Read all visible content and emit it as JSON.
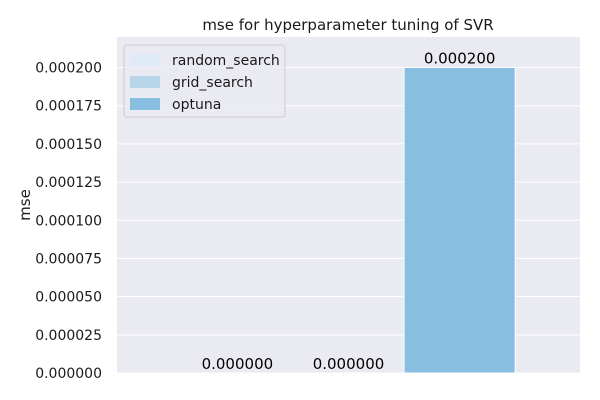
{
  "chart_data": {
    "type": "bar",
    "title": "mse for hyperparameter tuning of SVR",
    "xlabel": "",
    "ylabel": "mse",
    "categories": [
      ""
    ],
    "series": [
      {
        "name": "random_search",
        "values": [
          0.0
        ],
        "label": "0.000000"
      },
      {
        "name": "grid_search",
        "values": [
          0.0
        ],
        "label": "0.000000"
      },
      {
        "name": "optuna",
        "values": [
          0.0002
        ],
        "label": "0.000200"
      }
    ],
    "ylim": [
      0,
      0.00022
    ],
    "yticks": [
      0,
      2.5e-05,
      5e-05,
      7.5e-05,
      0.0001,
      0.000125,
      0.00015,
      0.000175,
      0.0002
    ],
    "ytick_labels": [
      "0.000000",
      "0.000025",
      "0.000050",
      "0.000075",
      "0.000100",
      "0.000125",
      "0.000150",
      "0.000175",
      "0.000200"
    ],
    "grid": true,
    "legend_position": "top-left",
    "colors": {
      "random_search": "#dfebf7",
      "grid_search": "#b8d5ea",
      "optuna": "#88bedf",
      "plot_background": "#eaeaf2",
      "grid": "#ffffff"
    }
  }
}
